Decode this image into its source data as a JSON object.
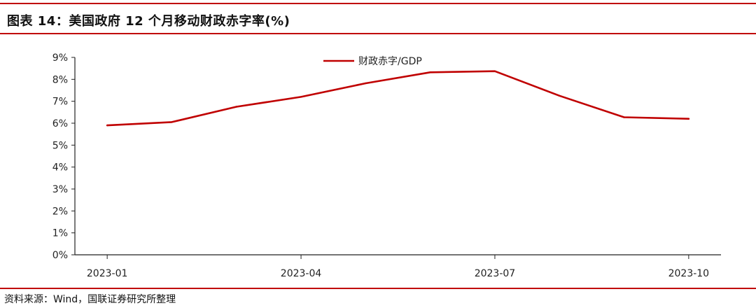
{
  "header": {
    "title": "图表 14：美国政府 12 个月移动财政赤字率(%)"
  },
  "footer": {
    "source": "资料来源：Wind，国联证券研究所整理"
  },
  "colors": {
    "accent": "#c00000",
    "series": "#c00000",
    "axis": "#222222"
  },
  "chart_data": {
    "type": "line",
    "title": "",
    "xlabel": "",
    "ylabel": "",
    "x": [
      "2023-01",
      "2023-02",
      "2023-03",
      "2023-04",
      "2023-05",
      "2023-06",
      "2023-07",
      "2023-08",
      "2023-09",
      "2023-10"
    ],
    "x_tick_labels": [
      "2023-01",
      "2023-04",
      "2023-07",
      "2023-10"
    ],
    "y_tick_labels": [
      "0%",
      "1%",
      "2%",
      "3%",
      "4%",
      "5%",
      "6%",
      "7%",
      "8%",
      "9%"
    ],
    "ylim": [
      0,
      9
    ],
    "grid": false,
    "legend_position": "top-center",
    "series": [
      {
        "name": "财政赤字/GDP",
        "values": [
          5.9,
          6.05,
          6.75,
          7.2,
          7.82,
          8.32,
          8.37,
          7.25,
          6.27,
          6.2
        ]
      }
    ]
  }
}
